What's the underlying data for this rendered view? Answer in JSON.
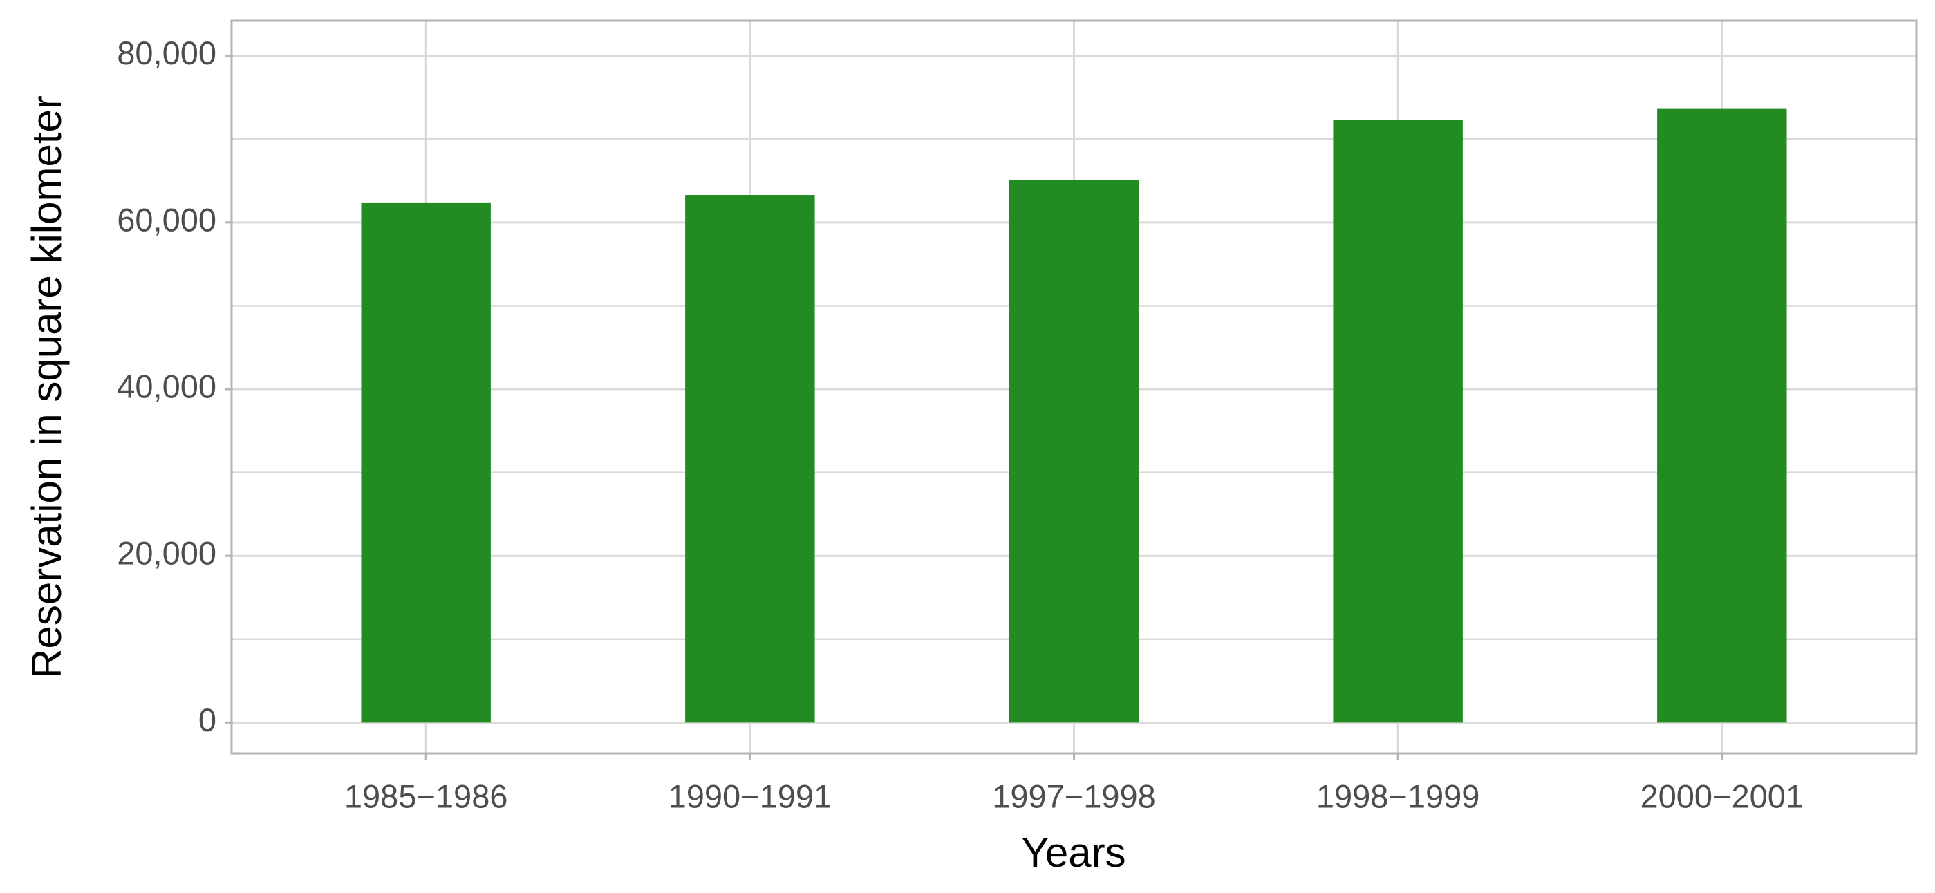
{
  "chart_data": {
    "type": "bar",
    "x_label": "Years",
    "y_label": "Reservation in square kilometer",
    "categories": [
      "1985−1986",
      "1990−1991",
      "1997−1998",
      "1998−1999",
      "2000−2001"
    ],
    "values": [
      62400,
      63300,
      65100,
      72300,
      73700
    ],
    "color": "#228b22",
    "ylim": [
      -3700,
      84200
    ],
    "yticks": [
      0,
      {
        "value": 20000,
        "label": "20,000"
      },
      {
        "value": 40000,
        "label": "40,000"
      },
      {
        "value": 60000,
        "label": "60,000"
      },
      {
        "value": 80000,
        "label": "80,000"
      }
    ],
    "minor_yticks": [
      10000,
      30000,
      50000,
      70000
    ],
    "grid": true
  }
}
